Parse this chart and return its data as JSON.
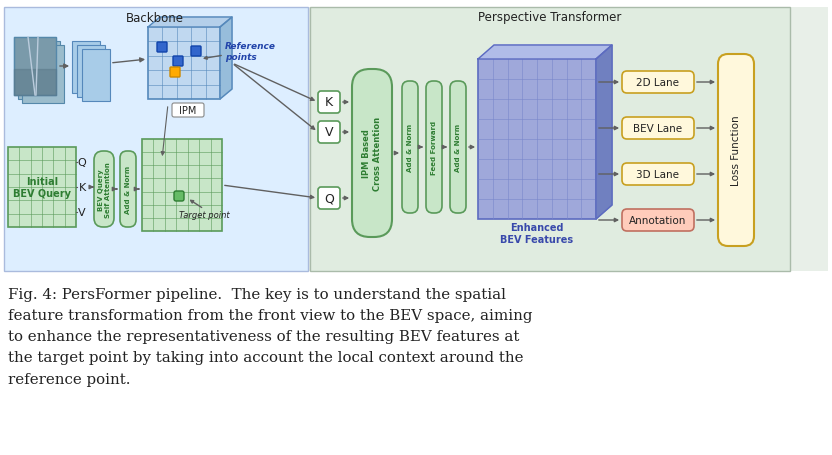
{
  "fig_width": 8.32,
  "fig_height": 4.56,
  "dpi": 100,
  "bg_color": "#ffffff",
  "diagram_bg": "#e8efe8",
  "backbone_bg": "#ddeeff",
  "transformer_bg": "#e0ece0",
  "caption": "Fig. 4: PersFormer pipeline.  The key is to understand the spatial\nfeature transformation from the front view to the BEV space, aiming\nto enhance the representativeness of the resulting BEV features at\nthe target point by taking into account the local context around the\nreference point.",
  "caption_fontsize": 10.8,
  "title_backbone": "Backbone",
  "title_transformer": "Perspective Transformer",
  "green_fill": "#c8e6c8",
  "green_edge": "#5a9a5a",
  "green_text": "#2e7d32",
  "blue_fill": "#b8d8f0",
  "blue_edge": "#4a80c0",
  "purple_fill": "#9fa8da",
  "purple_edge": "#5c6bc0",
  "purple_dark": "#7986cb",
  "purple_side": "#7080c0",
  "purple_top": "#b0bce8",
  "purple_text": "#3949ab",
  "yellow_fill": "#fff8dc",
  "yellow_edge": "#c8a020",
  "red_fill": "#ffccbb",
  "red_edge": "#c07060",
  "dark": "#222222",
  "arrow": "#606060",
  "white": "#ffffff",
  "gray_edge": "#888888"
}
